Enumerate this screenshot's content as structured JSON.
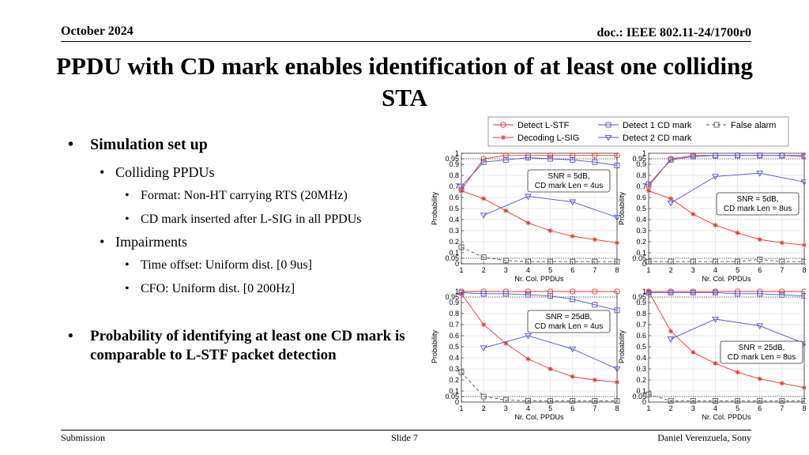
{
  "header": {
    "date": "October 2024",
    "doc": "doc.: IEEE 802.11-24/1700r0"
  },
  "title": "PPDU with CD mark enables identification of at least one colliding STA",
  "bullets": {
    "b1": "Simulation set up",
    "b1a": "Colliding PPDUs",
    "b1a1": "Format: Non-HT carrying RTS (20MHz)",
    "b1a2": "CD mark inserted after L-SIG in all PPDUs",
    "b1b": "Impairments",
    "b1b1": "Time offset: Uniform dist. [0 9us]",
    "b1b2": "CFO: Uniform dist. [0 200Hz]",
    "b2": "Probability of identifying at least one CD mark is comparable to L-STF packet detection"
  },
  "footer": {
    "left": "Submission",
    "center": "Slide 7",
    "right": "Daniel Verenzuela, Sony"
  },
  "colors": {
    "red": "#e8332a",
    "blue": "#4a52d4",
    "gray": "#555555"
  },
  "chart_data": [
    {
      "type": "line",
      "annotation": [
        "SNR = 5dB,",
        "CD mark Len = 4us"
      ],
      "xlabel": "Nr. Col. PPDUs",
      "ylabel": "Probability",
      "x": [
        1,
        2,
        3,
        4,
        5,
        6,
        7,
        8
      ],
      "xlim": [
        1,
        8
      ],
      "ylim": [
        0,
        1
      ],
      "yticks": [
        0,
        0.05,
        0.1,
        0.2,
        0.3,
        0.4,
        0.5,
        0.6,
        0.7,
        0.8,
        0.9,
        0.95,
        1
      ],
      "ref_lines": [
        0.05,
        0.95
      ],
      "grid": true,
      "series": [
        {
          "name": "Detect L-STF",
          "values": [
            0.67,
            0.95,
            0.98,
            0.98,
            0.98,
            0.98,
            0.98,
            0.98
          ]
        },
        {
          "name": "Decoding L-SIG",
          "values": [
            0.66,
            0.59,
            0.48,
            0.37,
            0.3,
            0.25,
            0.22,
            0.19
          ]
        },
        {
          "name": "Detect 1 CD mark",
          "values": [
            0.7,
            0.92,
            0.94,
            0.96,
            0.95,
            0.94,
            0.92,
            0.89
          ]
        },
        {
          "name": "Detect 2 CD mark",
          "values": [
            null,
            0.44,
            null,
            0.61,
            null,
            0.56,
            null,
            0.42
          ]
        },
        {
          "name": "False alarm",
          "values": [
            0.15,
            0.06,
            0.03,
            0.02,
            0.02,
            0.02,
            0.02,
            0.02
          ]
        }
      ]
    },
    {
      "type": "line",
      "annotation": [
        "SNR = 5dB,",
        "CD mark Len = 8us"
      ],
      "xlabel": "Nr. Col. PPDUs",
      "ylabel": "Probability",
      "x": [
        1,
        2,
        3,
        4,
        5,
        6,
        7,
        8
      ],
      "xlim": [
        1,
        8
      ],
      "ylim": [
        0,
        1
      ],
      "yticks": [
        0,
        0.05,
        0.1,
        0.2,
        0.3,
        0.4,
        0.5,
        0.6,
        0.7,
        0.8,
        0.9,
        0.95,
        1
      ],
      "ref_lines": [
        0.05,
        0.95
      ],
      "grid": true,
      "series": [
        {
          "name": "Detect L-STF",
          "values": [
            0.7,
            0.95,
            0.98,
            0.98,
            0.98,
            0.98,
            0.98,
            0.97
          ]
        },
        {
          "name": "Decoding L-SIG",
          "values": [
            0.66,
            0.59,
            0.45,
            0.35,
            0.28,
            0.22,
            0.19,
            0.17
          ]
        },
        {
          "name": "Detect 1 CD mark",
          "values": [
            0.72,
            0.94,
            0.97,
            0.98,
            0.98,
            0.98,
            0.98,
            0.98
          ]
        },
        {
          "name": "Detect 2 CD mark",
          "values": [
            null,
            0.55,
            null,
            0.79,
            null,
            0.82,
            null,
            0.74
          ]
        },
        {
          "name": "False alarm",
          "values": [
            0.02,
            0.02,
            0.02,
            0.02,
            0.02,
            0.04,
            0.02,
            0.02
          ]
        }
      ]
    },
    {
      "type": "line",
      "annotation": [
        "SNR = 25dB,",
        "CD mark Len = 4us"
      ],
      "xlabel": "Nr. Col. PPDUs",
      "ylabel": "Probability",
      "x": [
        1,
        2,
        3,
        4,
        5,
        6,
        7,
        8
      ],
      "xlim": [
        1,
        8
      ],
      "ylim": [
        0,
        1
      ],
      "yticks": [
        0,
        0.05,
        0.1,
        0.2,
        0.3,
        0.4,
        0.5,
        0.6,
        0.7,
        0.8,
        0.9,
        0.95,
        1
      ],
      "ref_lines": [
        0.05,
        0.95
      ],
      "grid": true,
      "series": [
        {
          "name": "Detect L-STF",
          "values": [
            1,
            1,
            1,
            1,
            1,
            1,
            1,
            1
          ]
        },
        {
          "name": "Decoding L-SIG",
          "values": [
            0.98,
            0.7,
            0.53,
            0.39,
            0.3,
            0.23,
            0.2,
            0.18
          ]
        },
        {
          "name": "Detect 1 CD mark",
          "values": [
            0.99,
            0.98,
            0.98,
            0.97,
            0.96,
            0.93,
            0.88,
            0.83
          ]
        },
        {
          "name": "Detect 2 CD mark",
          "values": [
            null,
            0.49,
            null,
            0.6,
            null,
            0.48,
            null,
            0.3
          ]
        },
        {
          "name": "False alarm",
          "values": [
            0.27,
            0.05,
            0.02,
            0.01,
            0.01,
            0.01,
            0.01,
            0.01
          ]
        }
      ]
    },
    {
      "type": "line",
      "annotation": [
        "SNR = 25dB,",
        "CD mark Len = 8us"
      ],
      "xlabel": "Nr. Col. PPDUs",
      "ylabel": "Probability",
      "x": [
        1,
        2,
        3,
        4,
        5,
        6,
        7,
        8
      ],
      "xlim": [
        1,
        8
      ],
      "ylim": [
        0,
        1
      ],
      "yticks": [
        0,
        0.05,
        0.1,
        0.2,
        0.3,
        0.4,
        0.5,
        0.6,
        0.7,
        0.8,
        0.9,
        0.95,
        1
      ],
      "ref_lines": [
        0.05,
        0.95
      ],
      "grid": true,
      "series": [
        {
          "name": "Detect L-STF",
          "values": [
            1,
            1,
            1,
            1,
            1,
            1,
            1,
            1
          ]
        },
        {
          "name": "Decoding L-SIG",
          "values": [
            1.0,
            0.64,
            0.45,
            0.35,
            0.27,
            0.21,
            0.17,
            0.13
          ]
        },
        {
          "name": "Detect 1 CD mark",
          "values": [
            0.99,
            0.99,
            0.99,
            0.99,
            0.98,
            0.98,
            0.97,
            0.96
          ]
        },
        {
          "name": "Detect 2 CD mark",
          "values": [
            null,
            0.57,
            null,
            0.75,
            null,
            0.69,
            null,
            0.53
          ]
        },
        {
          "name": "False alarm",
          "values": [
            0.07,
            0.01,
            0.01,
            0.01,
            0.01,
            0.01,
            0.01,
            0.01
          ]
        }
      ]
    }
  ]
}
